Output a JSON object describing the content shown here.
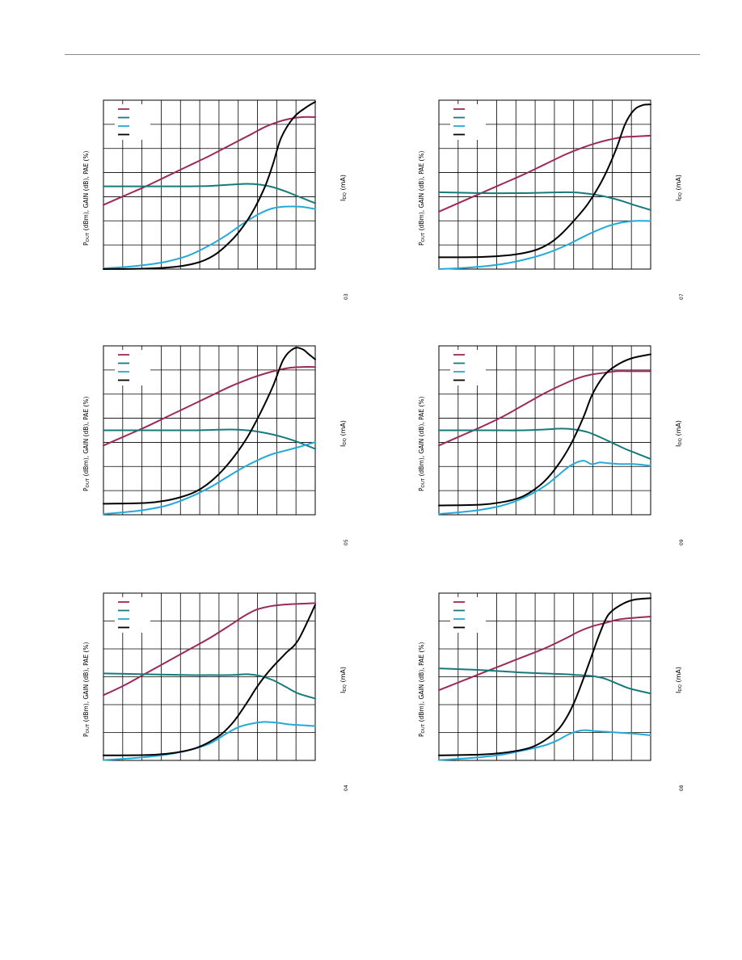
{
  "page": {},
  "axes": {
    "y_left_label": {
      "main": "P",
      "sub": "OUT",
      "rest": " (dBm), GAIN (dB), PAE (%)"
    },
    "y_right_label": {
      "main": "I",
      "sub": "DQ",
      "rest": " (mA)"
    }
  },
  "colors": {
    "pout": "#9b2a5a",
    "gain": "#177a7a",
    "pae": "#25a9d8",
    "idq": "#000000",
    "grid": "#000000"
  },
  "chart_data": [
    {
      "type": "line",
      "xlim": [
        0,
        1
      ],
      "ylim": [
        0,
        1
      ],
      "grid": {
        "x_divisions": 11,
        "y_divisions": 7
      },
      "legend": "top-left",
      "fig_code": "03",
      "series": [
        {
          "key": "pout",
          "x": [
            0,
            0.1,
            0.2,
            0.3,
            0.4,
            0.5,
            0.6,
            0.7,
            0.76,
            0.82,
            0.88,
            0.94,
            1.0
          ],
          "y": [
            0.38,
            0.435,
            0.49,
            0.55,
            0.61,
            0.67,
            0.735,
            0.8,
            0.84,
            0.87,
            0.89,
            0.9,
            0.9
          ]
        },
        {
          "key": "gain",
          "x": [
            0,
            0.2,
            0.4,
            0.5,
            0.6,
            0.68,
            0.74,
            0.8,
            0.86,
            0.92,
            1.0
          ],
          "y": [
            0.49,
            0.49,
            0.49,
            0.492,
            0.5,
            0.505,
            0.5,
            0.485,
            0.46,
            0.43,
            0.39
          ]
        },
        {
          "key": "pae",
          "x": [
            0,
            0.1,
            0.2,
            0.3,
            0.4,
            0.5,
            0.58,
            0.66,
            0.74,
            0.8,
            0.86,
            0.92,
            0.96,
            1.0
          ],
          "y": [
            0.005,
            0.012,
            0.025,
            0.045,
            0.08,
            0.14,
            0.2,
            0.27,
            0.33,
            0.36,
            0.37,
            0.37,
            0.365,
            0.355
          ]
        },
        {
          "key": "idq",
          "x": [
            0,
            0.2,
            0.35,
            0.45,
            0.52,
            0.58,
            0.64,
            0.7,
            0.76,
            0.8,
            0.84,
            0.9,
            0.96,
            1.0
          ],
          "y": [
            0,
            0.003,
            0.015,
            0.04,
            0.08,
            0.14,
            0.22,
            0.33,
            0.48,
            0.62,
            0.78,
            0.9,
            0.96,
            0.99
          ]
        }
      ]
    },
    {
      "type": "line",
      "xlim": [
        0,
        1
      ],
      "ylim": [
        0,
        1
      ],
      "grid": {
        "x_divisions": 11,
        "y_divisions": 7
      },
      "legend": "top-left",
      "fig_code": "07",
      "series": [
        {
          "key": "pout",
          "x": [
            0,
            0.1,
            0.2,
            0.3,
            0.4,
            0.5,
            0.6,
            0.68,
            0.74,
            0.8,
            0.86,
            0.92,
            1.0
          ],
          "y": [
            0.34,
            0.395,
            0.45,
            0.505,
            0.56,
            0.62,
            0.68,
            0.72,
            0.745,
            0.765,
            0.78,
            0.785,
            0.79
          ]
        },
        {
          "key": "gain",
          "x": [
            0,
            0.2,
            0.4,
            0.6,
            0.68,
            0.74,
            0.8,
            0.86,
            0.92,
            1.0
          ],
          "y": [
            0.455,
            0.45,
            0.45,
            0.455,
            0.45,
            0.44,
            0.425,
            0.405,
            0.38,
            0.35
          ]
        },
        {
          "key": "pae",
          "x": [
            0,
            0.1,
            0.2,
            0.3,
            0.4,
            0.5,
            0.6,
            0.68,
            0.74,
            0.8,
            0.86,
            0.92,
            1.0
          ],
          "y": [
            0,
            0.006,
            0.015,
            0.03,
            0.055,
            0.09,
            0.14,
            0.19,
            0.225,
            0.255,
            0.275,
            0.285,
            0.285
          ]
        },
        {
          "key": "idq",
          "x": [
            0,
            0.2,
            0.35,
            0.45,
            0.52,
            0.58,
            0.64,
            0.7,
            0.76,
            0.8,
            0.84,
            0.88,
            0.92,
            0.96,
            1.0
          ],
          "y": [
            0.07,
            0.072,
            0.085,
            0.11,
            0.15,
            0.21,
            0.29,
            0.38,
            0.5,
            0.6,
            0.72,
            0.86,
            0.94,
            0.97,
            0.975
          ]
        }
      ]
    },
    {
      "type": "line",
      "xlim": [
        0,
        1
      ],
      "ylim": [
        0,
        1
      ],
      "grid": {
        "x_divisions": 11,
        "y_divisions": 7
      },
      "legend": "top-left",
      "fig_code": "05",
      "series": [
        {
          "key": "pout",
          "x": [
            0,
            0.1,
            0.2,
            0.3,
            0.4,
            0.5,
            0.6,
            0.7,
            0.76,
            0.82,
            0.88,
            0.94,
            1.0
          ],
          "y": [
            0.41,
            0.465,
            0.52,
            0.58,
            0.64,
            0.7,
            0.76,
            0.81,
            0.835,
            0.855,
            0.87,
            0.875,
            0.875
          ]
        },
        {
          "key": "gain",
          "x": [
            0,
            0.2,
            0.4,
            0.5,
            0.6,
            0.68,
            0.74,
            0.8,
            0.86,
            0.92,
            1.0
          ],
          "y": [
            0.5,
            0.5,
            0.5,
            0.502,
            0.505,
            0.5,
            0.49,
            0.475,
            0.455,
            0.43,
            0.39
          ]
        },
        {
          "key": "pae",
          "x": [
            0,
            0.1,
            0.2,
            0.3,
            0.4,
            0.5,
            0.58,
            0.66,
            0.74,
            0.8,
            0.86,
            0.92,
            0.96,
            1.0
          ],
          "y": [
            0.005,
            0.015,
            0.03,
            0.055,
            0.1,
            0.16,
            0.22,
            0.28,
            0.33,
            0.36,
            0.38,
            0.4,
            0.415,
            0.43
          ]
        },
        {
          "key": "idq",
          "x": [
            0,
            0.2,
            0.3,
            0.38,
            0.44,
            0.5,
            0.56,
            0.62,
            0.68,
            0.74,
            0.8,
            0.85,
            0.9,
            0.94,
            0.97,
            1.0
          ],
          "y": [
            0.065,
            0.07,
            0.085,
            0.11,
            0.14,
            0.19,
            0.26,
            0.35,
            0.46,
            0.6,
            0.76,
            0.92,
            0.985,
            0.98,
            0.95,
            0.92
          ]
        }
      ]
    },
    {
      "type": "line",
      "xlim": [
        0,
        1
      ],
      "ylim": [
        0,
        1
      ],
      "grid": {
        "x_divisions": 11,
        "y_divisions": 7
      },
      "legend": "top-left",
      "fig_code": "09",
      "series": [
        {
          "key": "pout",
          "x": [
            0,
            0.1,
            0.2,
            0.3,
            0.4,
            0.5,
            0.6,
            0.66,
            0.72,
            0.78,
            0.84,
            0.9,
            1.0
          ],
          "y": [
            0.41,
            0.465,
            0.52,
            0.58,
            0.65,
            0.72,
            0.78,
            0.81,
            0.83,
            0.84,
            0.85,
            0.85,
            0.85
          ]
        },
        {
          "key": "gain",
          "x": [
            0,
            0.2,
            0.4,
            0.5,
            0.58,
            0.64,
            0.7,
            0.76,
            0.82,
            0.88,
            0.94,
            1.0
          ],
          "y": [
            0.5,
            0.5,
            0.5,
            0.505,
            0.51,
            0.505,
            0.49,
            0.46,
            0.425,
            0.39,
            0.36,
            0.33
          ]
        },
        {
          "key": "pae",
          "x": [
            0,
            0.1,
            0.2,
            0.3,
            0.4,
            0.5,
            0.56,
            0.62,
            0.68,
            0.72,
            0.76,
            0.8,
            0.86,
            0.92,
            1.0
          ],
          "y": [
            0.005,
            0.015,
            0.03,
            0.055,
            0.1,
            0.17,
            0.23,
            0.29,
            0.32,
            0.3,
            0.31,
            0.305,
            0.3,
            0.3,
            0.29
          ]
        },
        {
          "key": "idq",
          "x": [
            0,
            0.2,
            0.3,
            0.38,
            0.44,
            0.5,
            0.56,
            0.62,
            0.68,
            0.72,
            0.76,
            0.8,
            0.86,
            0.92,
            1.0
          ],
          "y": [
            0.055,
            0.06,
            0.075,
            0.1,
            0.14,
            0.2,
            0.29,
            0.41,
            0.57,
            0.7,
            0.79,
            0.85,
            0.9,
            0.93,
            0.95
          ]
        }
      ]
    },
    {
      "type": "line",
      "xlim": [
        0,
        1
      ],
      "ylim": [
        0,
        1
      ],
      "grid": {
        "x_divisions": 11,
        "y_divisions": 6
      },
      "legend": "top-left",
      "fig_code": "04",
      "series": [
        {
          "key": "pout",
          "x": [
            0,
            0.1,
            0.2,
            0.3,
            0.4,
            0.5,
            0.6,
            0.66,
            0.72,
            0.78,
            0.84,
            0.9,
            1.0
          ],
          "y": [
            0.39,
            0.45,
            0.52,
            0.59,
            0.66,
            0.73,
            0.81,
            0.86,
            0.9,
            0.92,
            0.93,
            0.935,
            0.94
          ]
        },
        {
          "key": "gain",
          "x": [
            0,
            0.2,
            0.4,
            0.5,
            0.6,
            0.68,
            0.74,
            0.8,
            0.86,
            0.92,
            1.0
          ],
          "y": [
            0.52,
            0.515,
            0.51,
            0.51,
            0.51,
            0.515,
            0.505,
            0.48,
            0.44,
            0.4,
            0.37
          ]
        },
        {
          "key": "pae",
          "x": [
            0,
            0.1,
            0.2,
            0.3,
            0.4,
            0.5,
            0.58,
            0.64,
            0.7,
            0.76,
            0.82,
            0.88,
            0.94,
            1.0
          ],
          "y": [
            0.002,
            0.01,
            0.02,
            0.035,
            0.06,
            0.1,
            0.16,
            0.2,
            0.22,
            0.23,
            0.225,
            0.215,
            0.21,
            0.205
          ]
        },
        {
          "key": "idq",
          "x": [
            0,
            0.2,
            0.3,
            0.38,
            0.44,
            0.5,
            0.56,
            0.62,
            0.68,
            0.72,
            0.76,
            0.8,
            0.86,
            0.92,
            1.0
          ],
          "y": [
            0.03,
            0.032,
            0.04,
            0.055,
            0.075,
            0.11,
            0.16,
            0.24,
            0.35,
            0.43,
            0.5,
            0.56,
            0.64,
            0.72,
            0.93
          ]
        }
      ]
    },
    {
      "type": "line",
      "xlim": [
        0,
        1
      ],
      "ylim": [
        0,
        1
      ],
      "grid": {
        "x_divisions": 11,
        "y_divisions": 6
      },
      "legend": "top-left",
      "fig_code": "08",
      "series": [
        {
          "key": "pout",
          "x": [
            0,
            0.1,
            0.2,
            0.3,
            0.4,
            0.5,
            0.6,
            0.66,
            0.72,
            0.78,
            0.84,
            0.9,
            1.0
          ],
          "y": [
            0.42,
            0.47,
            0.52,
            0.57,
            0.62,
            0.67,
            0.73,
            0.77,
            0.8,
            0.82,
            0.84,
            0.85,
            0.86
          ]
        },
        {
          "key": "gain",
          "x": [
            0,
            0.2,
            0.4,
            0.5,
            0.6,
            0.66,
            0.72,
            0.78,
            0.84,
            0.9,
            1.0
          ],
          "y": [
            0.55,
            0.54,
            0.525,
            0.52,
            0.515,
            0.51,
            0.505,
            0.49,
            0.46,
            0.43,
            0.4
          ]
        },
        {
          "key": "pae",
          "x": [
            0,
            0.1,
            0.2,
            0.3,
            0.4,
            0.5,
            0.56,
            0.62,
            0.68,
            0.74,
            0.8,
            0.86,
            0.92,
            1.0
          ],
          "y": [
            0.002,
            0.01,
            0.02,
            0.035,
            0.06,
            0.09,
            0.12,
            0.16,
            0.18,
            0.175,
            0.17,
            0.165,
            0.16,
            0.15
          ]
        },
        {
          "key": "idq",
          "x": [
            0,
            0.2,
            0.3,
            0.38,
            0.44,
            0.5,
            0.56,
            0.6,
            0.64,
            0.68,
            0.72,
            0.76,
            0.8,
            0.86,
            0.92,
            1.0
          ],
          "y": [
            0.03,
            0.035,
            0.045,
            0.06,
            0.08,
            0.12,
            0.18,
            0.25,
            0.35,
            0.48,
            0.62,
            0.76,
            0.87,
            0.93,
            0.96,
            0.97
          ]
        }
      ]
    }
  ]
}
